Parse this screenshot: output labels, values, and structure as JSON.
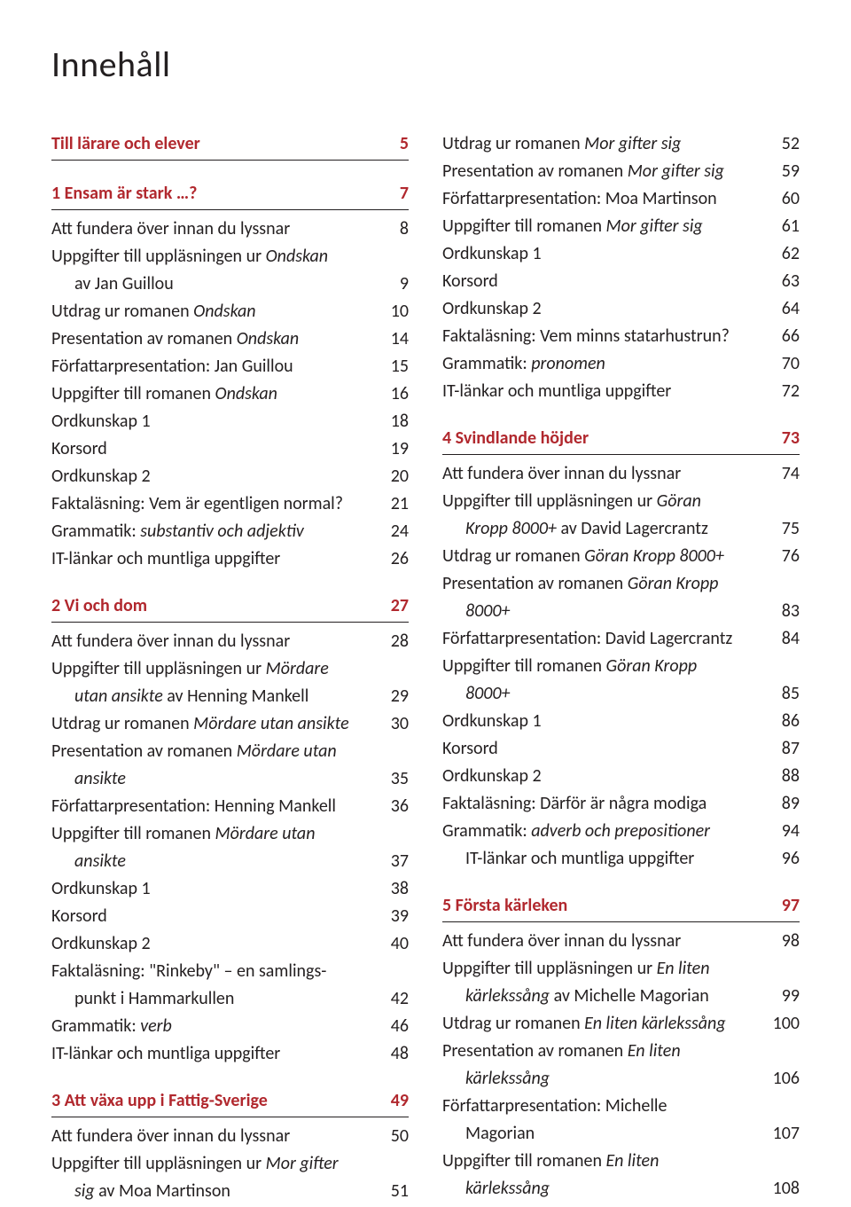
{
  "colors": {
    "text": "#231f20",
    "accent": "#b1282e",
    "rule": "#231f20",
    "background": "#ffffff"
  },
  "typography": {
    "title_fontsize": 40,
    "body_fontsize": 20,
    "line_height": 1.55,
    "font_family": "Optima, Candara, Calibri, Segoe UI, sans-serif"
  },
  "title": "Innehåll",
  "left": [
    {
      "kind": "section",
      "label": "Till lärare och elever",
      "page": "5"
    },
    {
      "kind": "section",
      "gap": true,
      "label": "1 Ensam är stark …?",
      "page": "7"
    },
    {
      "kind": "entry",
      "label": "Att fundera över innan du lyssnar",
      "page": "8"
    },
    {
      "kind": "cont",
      "label_parts": [
        {
          "t": "Uppgifter till uppläsningen ur "
        },
        {
          "t": "Ondskan",
          "i": true
        }
      ]
    },
    {
      "kind": "entry",
      "indent": true,
      "label_parts": [
        {
          "t": "av Jan Guillou"
        }
      ],
      "page": "9"
    },
    {
      "kind": "entry",
      "label_parts": [
        {
          "t": "Utdrag ur romanen "
        },
        {
          "t": "Ondskan",
          "i": true
        }
      ],
      "page": "10"
    },
    {
      "kind": "entry",
      "label_parts": [
        {
          "t": "Presentation av romanen "
        },
        {
          "t": "Ondskan",
          "i": true
        }
      ],
      "page": "14"
    },
    {
      "kind": "entry",
      "label": "Författarpresentation: Jan Guillou",
      "page": "15"
    },
    {
      "kind": "entry",
      "label_parts": [
        {
          "t": "Uppgifter till romanen "
        },
        {
          "t": "Ondskan",
          "i": true
        }
      ],
      "page": "16"
    },
    {
      "kind": "entry",
      "label": "Ordkunskap 1",
      "page": "18"
    },
    {
      "kind": "entry",
      "label": "Korsord",
      "page": "19"
    },
    {
      "kind": "entry",
      "label": "Ordkunskap 2",
      "page": "20"
    },
    {
      "kind": "entry",
      "label": "Faktaläsning: Vem är egentligen normal?",
      "page": "21"
    },
    {
      "kind": "entry",
      "label_parts": [
        {
          "t": "Grammatik: "
        },
        {
          "t": "substantiv och adjektiv",
          "i": true
        }
      ],
      "page": "24"
    },
    {
      "kind": "entry",
      "label": "IT-länkar och muntliga uppgifter",
      "page": "26"
    },
    {
      "kind": "section",
      "gap": true,
      "label": "2 Vi och dom",
      "page": "27"
    },
    {
      "kind": "entry",
      "label": "Att fundera över innan du lyssnar",
      "page": "28"
    },
    {
      "kind": "cont",
      "label_parts": [
        {
          "t": "Uppgifter till uppläsningen ur "
        },
        {
          "t": "Mördare",
          "i": true
        }
      ]
    },
    {
      "kind": "entry",
      "indent": true,
      "label_parts": [
        {
          "t": "utan ansikte",
          "i": true
        },
        {
          "t": " av Henning Mankell"
        }
      ],
      "page": "29"
    },
    {
      "kind": "entry",
      "label_parts": [
        {
          "t": "Utdrag ur romanen "
        },
        {
          "t": "Mördare utan ansikte",
          "i": true
        }
      ],
      "page": "30"
    },
    {
      "kind": "cont",
      "label_parts": [
        {
          "t": "Presentation av romanen "
        },
        {
          "t": "Mördare utan",
          "i": true
        }
      ]
    },
    {
      "kind": "entry",
      "indent": true,
      "label_parts": [
        {
          "t": "ansikte",
          "i": true
        }
      ],
      "page": "35"
    },
    {
      "kind": "entry",
      "label": "Författarpresentation: Henning Mankell",
      "page": "36"
    },
    {
      "kind": "cont",
      "label_parts": [
        {
          "t": "Uppgifter till romanen "
        },
        {
          "t": "Mördare utan",
          "i": true
        }
      ]
    },
    {
      "kind": "entry",
      "indent": true,
      "label_parts": [
        {
          "t": "ansikte",
          "i": true
        }
      ],
      "page": "37"
    },
    {
      "kind": "entry",
      "label": "Ordkunskap 1",
      "page": "38"
    },
    {
      "kind": "entry",
      "label": "Korsord",
      "page": "39"
    },
    {
      "kind": "entry",
      "label": "Ordkunskap 2",
      "page": "40"
    },
    {
      "kind": "cont",
      "label": "Faktaläsning: \"Rinkeby\" – en samlings-"
    },
    {
      "kind": "entry",
      "indent": true,
      "label": "punkt i Hammarkullen",
      "page": "42"
    },
    {
      "kind": "entry",
      "label_parts": [
        {
          "t": "Grammatik: "
        },
        {
          "t": "verb",
          "i": true
        }
      ],
      "page": "46"
    },
    {
      "kind": "entry",
      "label": "IT-länkar och muntliga uppgifter",
      "page": "48"
    },
    {
      "kind": "section",
      "gap": true,
      "label": "3 Att växa upp i Fattig-Sverige",
      "page": "49"
    },
    {
      "kind": "entry",
      "label": "Att fundera över innan du lyssnar",
      "page": "50"
    },
    {
      "kind": "cont",
      "label_parts": [
        {
          "t": "Uppgifter till uppläsningen ur "
        },
        {
          "t": "Mor gifter",
          "i": true
        }
      ]
    },
    {
      "kind": "entry",
      "indent": true,
      "label_parts": [
        {
          "t": "sig",
          "i": true
        },
        {
          "t": " av Moa Martinson"
        }
      ],
      "page": "51"
    }
  ],
  "right": [
    {
      "kind": "entry",
      "label_parts": [
        {
          "t": "Utdrag ur romanen "
        },
        {
          "t": "Mor gifter sig",
          "i": true
        }
      ],
      "page": "52"
    },
    {
      "kind": "entry",
      "label_parts": [
        {
          "t": "Presentation av romanen "
        },
        {
          "t": "Mor gifter sig",
          "i": true
        }
      ],
      "page": "59"
    },
    {
      "kind": "entry",
      "label": "Författarpresentation: Moa Martinson",
      "page": "60"
    },
    {
      "kind": "entry",
      "label_parts": [
        {
          "t": "Uppgifter till romanen "
        },
        {
          "t": "Mor gifter sig",
          "i": true
        }
      ],
      "page": "61"
    },
    {
      "kind": "entry",
      "label": "Ordkunskap 1",
      "page": "62"
    },
    {
      "kind": "entry",
      "label": "Korsord",
      "page": "63"
    },
    {
      "kind": "entry",
      "label": "Ordkunskap 2",
      "page": "64"
    },
    {
      "kind": "entry",
      "label": "Faktaläsning: Vem minns statarhustrun?",
      "page": "66"
    },
    {
      "kind": "entry",
      "label_parts": [
        {
          "t": "Grammatik: "
        },
        {
          "t": "pronomen",
          "i": true
        }
      ],
      "page": "70"
    },
    {
      "kind": "entry",
      "label": "IT-länkar och muntliga uppgifter",
      "page": "72"
    },
    {
      "kind": "section",
      "gap": true,
      "label": "4 Svindlande höjder",
      "page": "73"
    },
    {
      "kind": "entry",
      "label": "Att fundera över innan du lyssnar",
      "page": "74"
    },
    {
      "kind": "cont",
      "label_parts": [
        {
          "t": "Uppgifter till uppläsningen ur "
        },
        {
          "t": "Göran",
          "i": true
        }
      ]
    },
    {
      "kind": "entry",
      "indent": true,
      "label_parts": [
        {
          "t": "Kropp 8000+",
          "i": true
        },
        {
          "t": " av David Lagercrantz"
        }
      ],
      "page": "75"
    },
    {
      "kind": "entry",
      "label_parts": [
        {
          "t": "Utdrag ur romanen "
        },
        {
          "t": "Göran Kropp 8000+",
          "i": true
        }
      ],
      "page": "76"
    },
    {
      "kind": "cont",
      "label_parts": [
        {
          "t": "Presentation av romanen "
        },
        {
          "t": "Göran Kropp",
          "i": true
        }
      ]
    },
    {
      "kind": "entry",
      "indent": true,
      "label_parts": [
        {
          "t": "8000+",
          "i": true
        }
      ],
      "page": "83"
    },
    {
      "kind": "entry",
      "label": "Författarpresentation: David Lagercrantz",
      "page": "84"
    },
    {
      "kind": "cont",
      "label_parts": [
        {
          "t": "Uppgifter till romanen "
        },
        {
          "t": "Göran Kropp",
          "i": true
        }
      ]
    },
    {
      "kind": "entry",
      "indent": true,
      "label_parts": [
        {
          "t": "8000+",
          "i": true
        }
      ],
      "page": "85"
    },
    {
      "kind": "entry",
      "label": "Ordkunskap 1",
      "page": "86"
    },
    {
      "kind": "entry",
      "label": "Korsord",
      "page": "87"
    },
    {
      "kind": "entry",
      "label": "Ordkunskap 2",
      "page": "88"
    },
    {
      "kind": "entry",
      "label": "Faktaläsning: Därför är några modiga",
      "page": "89"
    },
    {
      "kind": "entry",
      "label_parts": [
        {
          "t": "Grammatik: "
        },
        {
          "t": "adverb och prepositioner",
          "i": true
        }
      ],
      "page": "94"
    },
    {
      "kind": "entry",
      "indent": true,
      "label": "IT-länkar och muntliga uppgifter",
      "page": "96"
    },
    {
      "kind": "section",
      "gap": true,
      "label": "5 Första kärleken",
      "page": "97"
    },
    {
      "kind": "entry",
      "label": "Att fundera över innan du lyssnar",
      "page": "98"
    },
    {
      "kind": "cont",
      "label_parts": [
        {
          "t": "Uppgifter till uppläsningen ur "
        },
        {
          "t": "En liten",
          "i": true
        }
      ]
    },
    {
      "kind": "entry",
      "indent": true,
      "label_parts": [
        {
          "t": "kärlekssång",
          "i": true
        },
        {
          "t": " av Michelle Magorian"
        }
      ],
      "page": "99"
    },
    {
      "kind": "entry",
      "label_parts": [
        {
          "t": "Utdrag ur romanen "
        },
        {
          "t": "En liten kärlekssång",
          "i": true
        }
      ],
      "page": "100"
    },
    {
      "kind": "cont",
      "label_parts": [
        {
          "t": "Presentation av romanen "
        },
        {
          "t": "En liten",
          "i": true
        }
      ]
    },
    {
      "kind": "entry",
      "indent": true,
      "label_parts": [
        {
          "t": "kärlekssång",
          "i": true
        }
      ],
      "page": "106"
    },
    {
      "kind": "cont",
      "label": "Författarpresentation: Michelle"
    },
    {
      "kind": "entry",
      "indent": true,
      "label": "Magorian",
      "page": "107"
    },
    {
      "kind": "cont",
      "label_parts": [
        {
          "t": "Uppgifter till romanen "
        },
        {
          "t": "En liten",
          "i": true
        }
      ]
    },
    {
      "kind": "entry",
      "indent": true,
      "label_parts": [
        {
          "t": "kärlekssång",
          "i": true
        }
      ],
      "page": "108"
    }
  ]
}
